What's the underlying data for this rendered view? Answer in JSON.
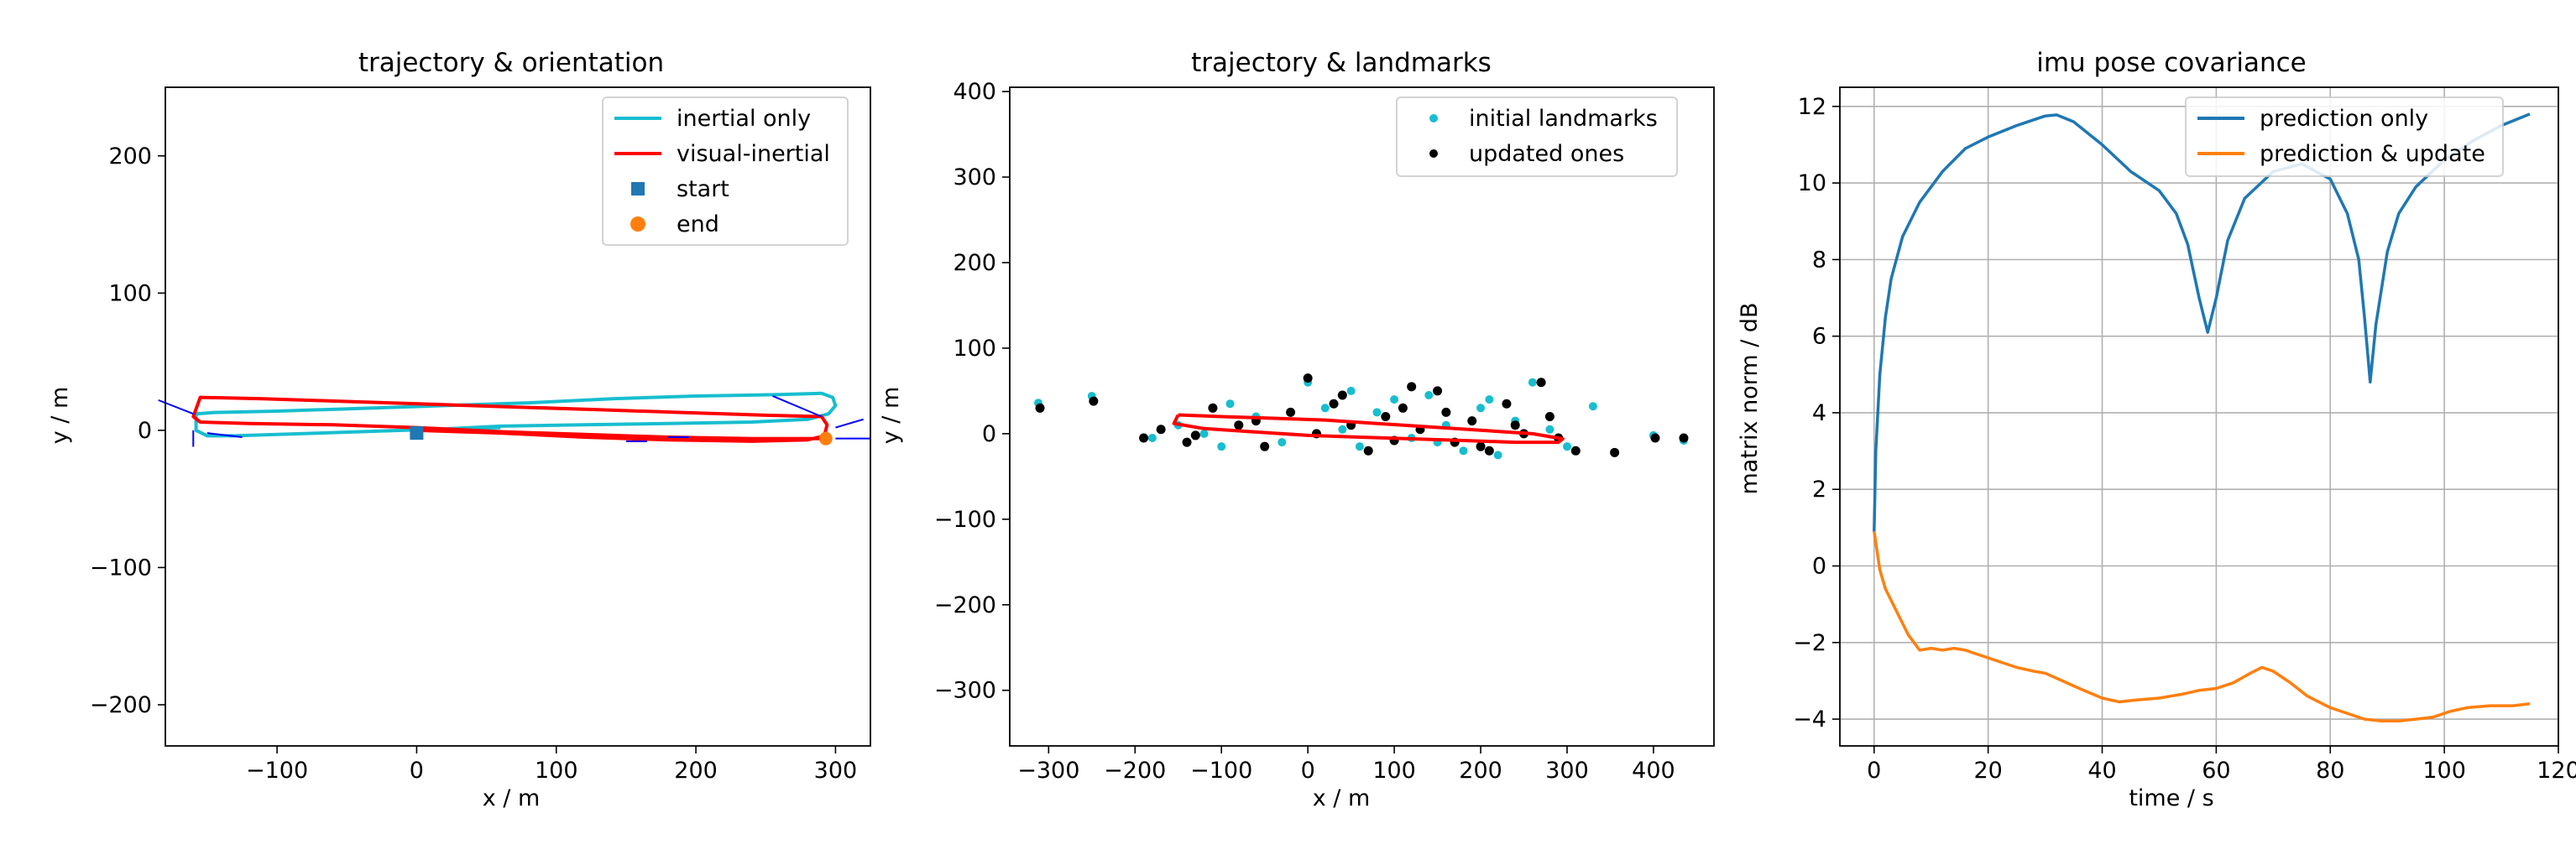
{
  "chart_data": [
    {
      "type": "line",
      "title": "trajectory & orientation",
      "xlabel": "x / m",
      "ylabel": "y / m",
      "xlim": [
        -180,
        325
      ],
      "ylim": [
        -230,
        250
      ],
      "xticks": [
        -100,
        0,
        100,
        200,
        300
      ],
      "yticks": [
        -200,
        -100,
        0,
        100,
        200
      ],
      "grid": false,
      "legend": "top-right",
      "colors": {
        "inertial": "#17becf",
        "visual": "#ff0000",
        "start": "#1f77b4",
        "end": "#ff7f0e",
        "arrows": "#0000ff"
      },
      "legend_entries": [
        "inertial only",
        "visual-inertial",
        "start",
        "end"
      ],
      "series": [
        {
          "name": "inertial only",
          "x": [
            0,
            60,
            120,
            180,
            240,
            280,
            295,
            300,
            298,
            290,
            260,
            200,
            140,
            80,
            20,
            -40,
            -100,
            -145,
            -158,
            -158,
            -150,
            -130,
            -100,
            -40,
            20,
            60
          ],
          "y": [
            0,
            3,
            4,
            5,
            6,
            8,
            12,
            18,
            24,
            27,
            26,
            25,
            23,
            20,
            18,
            16,
            14,
            13,
            12,
            0,
            -4,
            -4,
            -3,
            -1,
            1,
            2
          ]
        },
        {
          "name": "visual-inertial",
          "x": [
            0,
            60,
            120,
            180,
            240,
            280,
            292,
            294,
            290,
            250,
            190,
            130,
            70,
            10,
            -50,
            -110,
            -155,
            -160,
            -155,
            -120,
            -60,
            0,
            60,
            120,
            180,
            240,
            285,
            293
          ],
          "y": [
            0,
            -2,
            -5,
            -7,
            -8,
            -7,
            -4,
            4,
            10,
            11,
            13,
            15,
            17,
            19,
            21,
            23,
            24,
            10,
            6,
            5,
            4,
            2,
            -1,
            -3,
            -5,
            -6,
            -6,
            -6
          ]
        },
        {
          "name": "start",
          "x": [
            0
          ],
          "y": [
            -2
          ]
        },
        {
          "name": "end",
          "x": [
            293
          ],
          "y": [
            -6
          ]
        }
      ]
    },
    {
      "type": "scatter",
      "title": "trajectory & landmarks",
      "xlabel": "x / m",
      "ylabel": "y / m",
      "xlim": [
        -345,
        470
      ],
      "ylim": [
        -365,
        405
      ],
      "xticks": [
        -300,
        -200,
        -100,
        0,
        100,
        200,
        300,
        400
      ],
      "yticks": [
        -300,
        -200,
        -100,
        0,
        100,
        200,
        300,
        400
      ],
      "grid": false,
      "legend": "top-right",
      "colors": {
        "initial": "#17becf",
        "updated": "#000000",
        "trajectory": "#ff0000"
      },
      "legend_entries": [
        "initial landmarks",
        "updated ones"
      ],
      "series": [
        {
          "name": "initial landmarks",
          "x": [
            -312,
            -250,
            -180,
            -150,
            -120,
            -90,
            -60,
            -30,
            0,
            20,
            40,
            60,
            80,
            100,
            120,
            140,
            160,
            180,
            200,
            220,
            240,
            260,
            280,
            300,
            330,
            400,
            435,
            -100,
            50,
            150,
            210
          ],
          "y": [
            36,
            44,
            -5,
            10,
            0,
            35,
            20,
            -10,
            60,
            30,
            5,
            -15,
            25,
            40,
            -5,
            45,
            10,
            -20,
            30,
            -25,
            15,
            60,
            5,
            -15,
            32,
            -2,
            -8,
            -15,
            50,
            -10,
            40
          ]
        },
        {
          "name": "updated ones",
          "x": [
            -310,
            -248,
            -190,
            -170,
            -140,
            -110,
            -80,
            -50,
            -20,
            0,
            10,
            30,
            50,
            70,
            90,
            110,
            130,
            150,
            170,
            190,
            210,
            230,
            250,
            270,
            290,
            310,
            355,
            402,
            435,
            -130,
            -60,
            40,
            100,
            160,
            240,
            280,
            120,
            200
          ],
          "y": [
            30,
            38,
            -5,
            5,
            -10,
            30,
            10,
            -15,
            25,
            65,
            0,
            35,
            10,
            -20,
            20,
            30,
            5,
            50,
            -10,
            15,
            -20,
            35,
            0,
            60,
            -5,
            -20,
            -22,
            -5,
            -5,
            -2,
            15,
            45,
            -8,
            25,
            10,
            20,
            55,
            -15
          ]
        }
      ],
      "trajectory": {
        "x": [
          -150,
          -100,
          -40,
          20,
          80,
          140,
          200,
          260,
          295,
          290,
          240,
          180,
          120,
          60,
          0,
          -60,
          -120,
          -155,
          -150
        ],
        "y": [
          22,
          20,
          18,
          16,
          12,
          8,
          4,
          0,
          -6,
          -10,
          -10,
          -8,
          -6,
          -4,
          -2,
          2,
          6,
          12,
          22
        ]
      }
    },
    {
      "type": "line",
      "title": "imu pose covariance",
      "xlabel": "time / s",
      "ylabel": "matrix norm / dB",
      "xlim": [
        -6,
        120
      ],
      "ylim": [
        -4.7,
        12.5
      ],
      "xticks": [
        0,
        20,
        40,
        60,
        80,
        100,
        120
      ],
      "yticks": [
        -4,
        -2,
        0,
        2,
        4,
        6,
        8,
        10,
        12
      ],
      "grid": true,
      "legend": "top-right",
      "colors": {
        "prediction_only": "#1f77b4",
        "prediction_update": "#ff7f0e"
      },
      "legend_entries": [
        "prediction only",
        "prediction & update"
      ],
      "series": [
        {
          "name": "prediction only",
          "x": [
            0,
            0.3,
            1,
            2,
            3,
            5,
            8,
            12,
            16,
            20,
            25,
            30,
            32,
            35,
            40,
            45,
            50,
            53,
            55,
            57,
            58.5,
            60,
            62,
            65,
            70,
            75,
            80,
            83,
            85,
            86,
            87,
            88,
            90,
            92,
            95,
            100,
            105,
            110,
            115
          ],
          "y": [
            0.9,
            3.0,
            5.0,
            6.5,
            7.5,
            8.6,
            9.5,
            10.3,
            10.9,
            11.2,
            11.5,
            11.75,
            11.78,
            11.6,
            11.0,
            10.3,
            9.8,
            9.2,
            8.4,
            7.0,
            6.1,
            7.0,
            8.5,
            9.6,
            10.3,
            10.5,
            10.1,
            9.2,
            8.0,
            6.5,
            4.8,
            6.3,
            8.2,
            9.2,
            9.9,
            10.6,
            11.1,
            11.5,
            11.8
          ]
        },
        {
          "name": "prediction & update",
          "x": [
            0,
            0.5,
            1,
            2,
            3,
            4,
            5,
            6,
            7,
            8,
            10,
            12,
            14,
            16,
            18,
            20,
            22,
            25,
            28,
            30,
            33,
            36,
            40,
            43,
            46,
            50,
            54,
            57,
            60,
            63,
            66,
            68,
            70,
            73,
            76,
            80,
            83,
            86,
            89,
            92,
            95,
            98,
            101,
            104,
            108,
            112,
            115
          ],
          "y": [
            0.9,
            0.4,
            -0.1,
            -0.6,
            -0.9,
            -1.2,
            -1.5,
            -1.8,
            -2.0,
            -2.2,
            -2.15,
            -2.2,
            -2.15,
            -2.2,
            -2.3,
            -2.4,
            -2.5,
            -2.65,
            -2.75,
            -2.8,
            -3.0,
            -3.2,
            -3.45,
            -3.55,
            -3.5,
            -3.45,
            -3.35,
            -3.25,
            -3.2,
            -3.05,
            -2.8,
            -2.65,
            -2.75,
            -3.05,
            -3.4,
            -3.7,
            -3.85,
            -4.0,
            -4.05,
            -4.05,
            -4.0,
            -3.95,
            -3.8,
            -3.7,
            -3.65,
            -3.65,
            -3.6
          ]
        }
      ]
    }
  ]
}
